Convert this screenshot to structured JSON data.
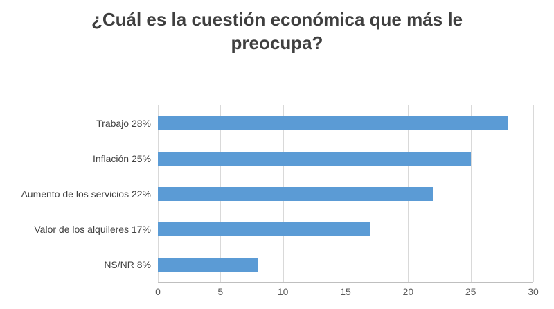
{
  "chart_data": {
    "type": "bar",
    "orientation": "horizontal",
    "title": "¿Cuál es la cuestión económica que más le preocupa?",
    "categories": [
      "Trabajo",
      "Inflación",
      "Aumento de los servicios",
      "Valor de los alquileres",
      "NS/NR"
    ],
    "values": [
      28,
      25,
      22,
      17,
      8
    ],
    "value_suffix": "%",
    "labels_with_values": [
      "Trabajo  28%",
      "Inflación  25%",
      "Aumento de los servicios  22%",
      "Valor de los alquileres  17%",
      "NS/NR 8%"
    ],
    "xlim": [
      0,
      30
    ],
    "x_ticks": [
      "0",
      "5",
      "10",
      "15",
      "20",
      "25",
      "30"
    ],
    "bar_color": "#5b9bd5",
    "gridline_color": "#d9d9d9",
    "axis_line_color": "#bfbfbf",
    "grid": true,
    "legend": "none",
    "background": "#ffffff"
  }
}
